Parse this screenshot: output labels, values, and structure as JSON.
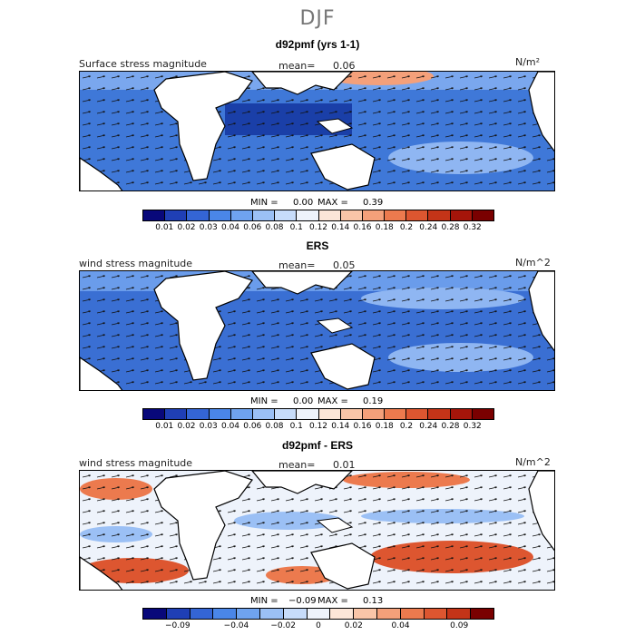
{
  "suptitle": "DJF",
  "chart_data": [
    {
      "type": "heatmap",
      "title": "d92pmf (yrs 1-1)",
      "left_label": "Surface stress magnitude",
      "mean_label": "mean=",
      "mean_value": "0.06",
      "units": "N/m²",
      "min_label": "MIN =",
      "min_value": "0.00",
      "max_label": "MAX =",
      "max_value": "0.39",
      "colorbar_ticks": [
        "0.01",
        "0.02",
        "0.03",
        "0.04",
        "0.06",
        "0.08",
        "0.1",
        "0.12",
        "0.14",
        "0.16",
        "0.18",
        "0.2",
        "0.24",
        "0.28",
        "0.32"
      ]
    },
    {
      "type": "heatmap",
      "title": "ERS",
      "left_label": "wind stress magnitude",
      "mean_label": "mean=",
      "mean_value": "0.05",
      "units": "N/m^2",
      "min_label": "MIN =",
      "min_value": "0.00",
      "max_label": "MAX =",
      "max_value": "0.19",
      "colorbar_ticks": [
        "0.01",
        "0.02",
        "0.03",
        "0.04",
        "0.06",
        "0.08",
        "0.1",
        "0.12",
        "0.14",
        "0.16",
        "0.18",
        "0.2",
        "0.24",
        "0.28",
        "0.32"
      ]
    },
    {
      "type": "heatmap",
      "title": "d92pmf - ERS",
      "left_label": "wind stress magnitude",
      "mean_label": "mean=",
      "mean_value": "0.01",
      "units": "N/m^2",
      "min_label": "MIN =",
      "min_value": "−0.09",
      "max_label": "MAX =",
      "max_value": "0.13",
      "colorbar_ticks": [
        "−0.09",
        "−0.04",
        "−0.02",
        "0",
        "0.02",
        "0.04",
        "0.09"
      ]
    }
  ],
  "colors": {
    "sequential": [
      "#08087a",
      "#1f3fb5",
      "#3465d5",
      "#4a86e8",
      "#6fa3ef",
      "#9bc0f5",
      "#c7dcfa",
      "#eef3fb",
      "#fce6d8",
      "#f9c5a8",
      "#f4a07a",
      "#ec7a4e",
      "#dd5630",
      "#c43418",
      "#a5150a",
      "#7a0000"
    ],
    "diverging": [
      "#08087a",
      "#1f3fb5",
      "#3465d5",
      "#4a86e8",
      "#6fa3ef",
      "#9bc0f5",
      "#c7dcfa",
      "#eef3fb",
      "#fce6d8",
      "#f9c5a8",
      "#f4a07a",
      "#ec7a4e",
      "#dd5630",
      "#c43418",
      "#7a0000"
    ]
  }
}
